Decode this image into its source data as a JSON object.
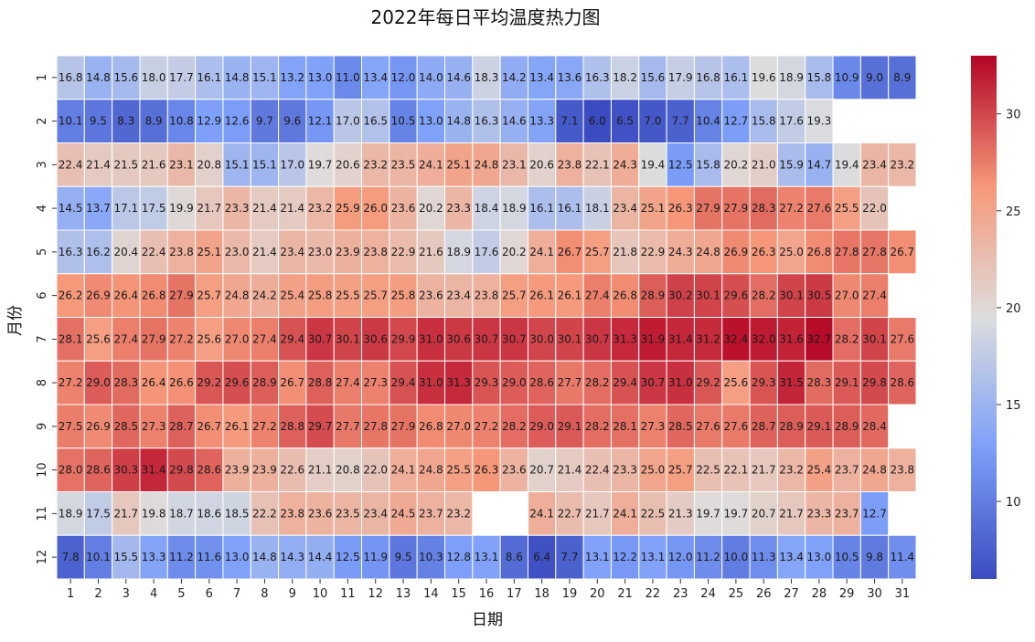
{
  "chart_data": {
    "type": "heatmap",
    "title": "2022年每日平均温度热力图",
    "xlabel": "日期",
    "ylabel": "月份",
    "x_categories": [
      "1",
      "2",
      "3",
      "4",
      "5",
      "6",
      "7",
      "8",
      "9",
      "10",
      "11",
      "12",
      "13",
      "14",
      "15",
      "16",
      "17",
      "18",
      "19",
      "20",
      "21",
      "22",
      "23",
      "24",
      "25",
      "26",
      "27",
      "28",
      "29",
      "30",
      "31"
    ],
    "y_categories": [
      "1",
      "2",
      "3",
      "4",
      "5",
      "6",
      "7",
      "8",
      "9",
      "10",
      "11",
      "12"
    ],
    "value_format": "0.1f",
    "color_range": [
      6.0,
      33.0
    ],
    "colormap": "coolwarm",
    "colorbar_ticks": [
      10,
      15,
      20,
      25,
      30
    ],
    "values": [
      [
        16.8,
        14.8,
        15.6,
        18.0,
        17.7,
        16.1,
        14.8,
        15.1,
        13.2,
        13.0,
        11.0,
        13.4,
        12.0,
        14.0,
        14.6,
        18.3,
        14.2,
        13.4,
        13.6,
        16.3,
        18.2,
        15.6,
        17.9,
        16.8,
        16.1,
        19.6,
        18.9,
        15.8,
        10.9,
        9.0,
        8.9
      ],
      [
        10.1,
        9.5,
        8.3,
        8.9,
        10.8,
        12.9,
        12.6,
        9.7,
        9.6,
        12.1,
        17.0,
        16.5,
        10.5,
        13.0,
        14.8,
        16.3,
        14.6,
        13.3,
        7.1,
        6.0,
        6.5,
        7.0,
        7.7,
        10.4,
        12.7,
        15.8,
        17.6,
        19.3,
        null,
        null,
        null
      ],
      [
        22.4,
        21.4,
        21.5,
        21.6,
        23.1,
        20.8,
        15.1,
        15.1,
        17.0,
        19.7,
        20.6,
        23.2,
        23.5,
        24.1,
        25.1,
        24.8,
        23.1,
        20.6,
        23.8,
        22.1,
        24.3,
        19.4,
        12.5,
        15.8,
        20.2,
        21.0,
        15.9,
        14.7,
        19.4,
        23.4,
        23.2
      ],
      [
        14.5,
        13.7,
        17.1,
        17.5,
        19.9,
        21.7,
        23.3,
        21.4,
        21.4,
        23.2,
        25.9,
        26.0,
        23.6,
        20.2,
        23.3,
        18.4,
        18.9,
        16.1,
        16.1,
        18.1,
        23.4,
        25.1,
        26.3,
        27.9,
        27.9,
        28.3,
        27.2,
        27.6,
        25.5,
        22.0,
        null
      ],
      [
        16.3,
        16.2,
        20.4,
        22.4,
        23.8,
        25.1,
        23.0,
        21.4,
        23.4,
        23.0,
        23.9,
        23.8,
        22.9,
        21.6,
        18.9,
        17.6,
        20.2,
        24.1,
        26.7,
        25.7,
        21.8,
        22.9,
        24.3,
        24.8,
        26.9,
        26.3,
        25.0,
        26.8,
        27.8,
        27.8,
        26.7
      ],
      [
        26.2,
        26.9,
        26.4,
        26.8,
        27.9,
        25.7,
        24.8,
        24.2,
        25.4,
        25.8,
        25.5,
        25.7,
        25.8,
        23.6,
        23.4,
        23.8,
        25.7,
        26.1,
        26.1,
        27.4,
        26.8,
        28.9,
        30.2,
        30.1,
        29.6,
        28.2,
        30.1,
        30.5,
        27.0,
        27.4,
        null
      ],
      [
        28.1,
        25.6,
        27.4,
        27.9,
        27.2,
        25.6,
        27.0,
        27.4,
        29.4,
        30.7,
        30.1,
        30.6,
        29.9,
        31.0,
        30.6,
        30.7,
        30.7,
        30.0,
        30.1,
        30.7,
        31.3,
        31.9,
        31.4,
        31.2,
        32.4,
        32.0,
        31.6,
        32.7,
        28.2,
        30.1,
        27.6
      ],
      [
        27.2,
        29.0,
        28.3,
        26.4,
        26.6,
        29.2,
        29.6,
        28.9,
        26.7,
        28.8,
        27.4,
        27.3,
        29.4,
        31.0,
        31.3,
        29.3,
        29.0,
        28.6,
        27.7,
        28.2,
        29.4,
        30.7,
        31.0,
        29.2,
        25.6,
        29.3,
        31.5,
        28.3,
        29.1,
        29.8,
        28.6
      ],
      [
        27.5,
        26.9,
        28.5,
        27.3,
        28.7,
        26.7,
        26.1,
        27.2,
        28.8,
        29.7,
        27.7,
        27.8,
        27.9,
        26.8,
        27.0,
        27.2,
        28.2,
        29.0,
        29.1,
        28.2,
        28.1,
        27.3,
        28.5,
        27.6,
        27.6,
        28.7,
        28.9,
        29.1,
        28.9,
        28.4,
        null
      ],
      [
        28.0,
        28.6,
        30.3,
        31.4,
        29.8,
        28.6,
        23.9,
        23.9,
        22.6,
        21.1,
        20.8,
        22.0,
        24.1,
        24.8,
        25.5,
        26.3,
        23.6,
        20.7,
        21.4,
        22.4,
        23.3,
        25.0,
        25.7,
        22.5,
        22.1,
        21.7,
        23.2,
        25.4,
        23.7,
        24.8,
        23.8
      ],
      [
        18.9,
        17.5,
        21.7,
        19.8,
        18.7,
        18.6,
        18.5,
        22.2,
        23.8,
        23.6,
        23.5,
        23.4,
        24.5,
        23.7,
        23.2,
        null,
        null,
        24.1,
        22.7,
        21.7,
        24.1,
        22.5,
        21.3,
        19.7,
        19.7,
        20.7,
        21.7,
        23.3,
        23.7,
        12.7,
        null
      ],
      [
        7.8,
        10.1,
        15.5,
        13.3,
        11.2,
        11.6,
        13.0,
        14.8,
        14.3,
        14.4,
        12.5,
        11.9,
        9.5,
        10.3,
        12.8,
        13.1,
        8.6,
        6.4,
        7.7,
        13.1,
        12.2,
        13.1,
        12.0,
        11.2,
        10.0,
        11.3,
        13.4,
        13.0,
        10.5,
        9.8,
        11.4
      ]
    ]
  }
}
